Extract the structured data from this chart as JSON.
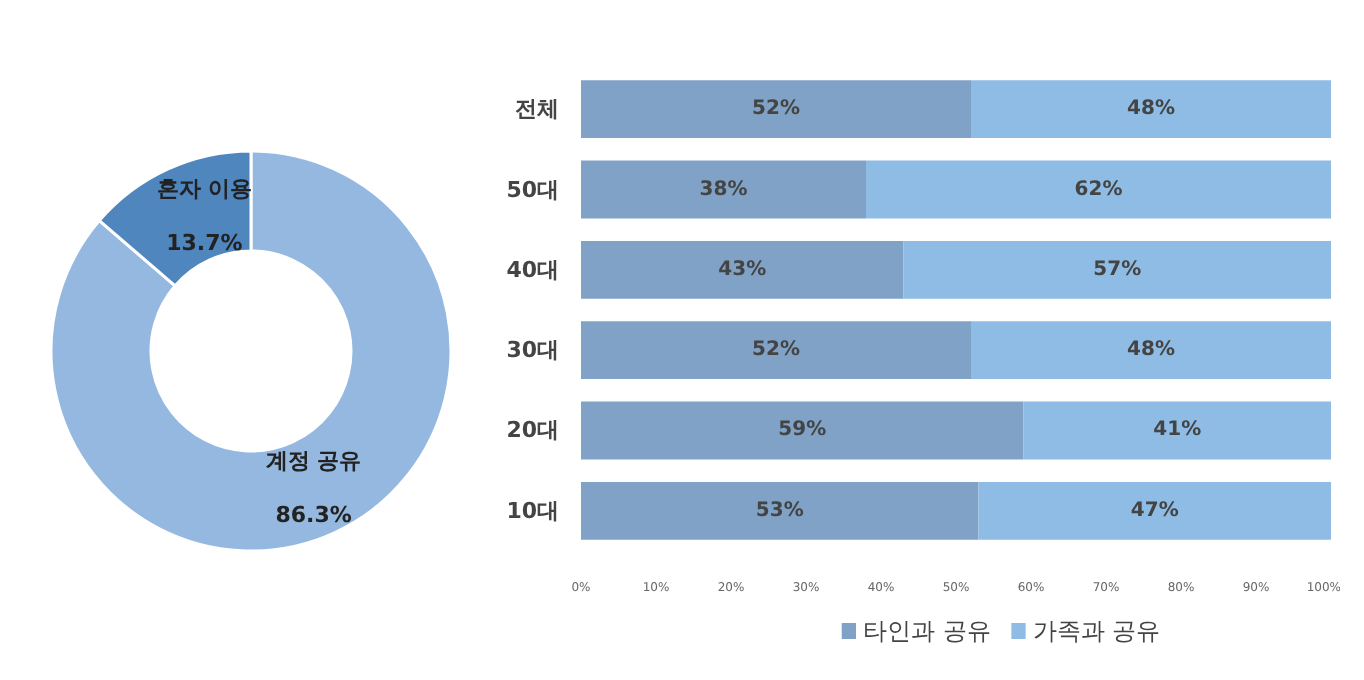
{
  "chart_data": [
    {
      "type": "donut",
      "categories": [
        "계정 공유",
        "혼자 이용"
      ],
      "values": [
        86.3,
        13.7
      ],
      "colors": [
        "#95b8e0",
        "#4f86bd"
      ],
      "value_labels": [
        "86.3%",
        "13.7%"
      ]
    },
    {
      "type": "bar",
      "orientation": "horizontal",
      "stacked": true,
      "categories": [
        "전체",
        "50대",
        "40대",
        "30대",
        "20대",
        "10대"
      ],
      "series": [
        {
          "name": "타인과 공유",
          "color": "#7fa2c6",
          "values": [
            52,
            38,
            43,
            52,
            59,
            53
          ],
          "value_labels": [
            "52%",
            "38%",
            "43%",
            "52%",
            "59%",
            "53%"
          ]
        },
        {
          "name": "가족과 공유",
          "color": "#8ebce4",
          "values": [
            48,
            62,
            57,
            48,
            41,
            47
          ],
          "value_labels": [
            "48%",
            "62%",
            "57%",
            "48%",
            "41%",
            "47%"
          ]
        }
      ],
      "xlim": [
        0,
        100
      ],
      "xticks": [
        {
          "value": 0,
          "label": "0%"
        },
        {
          "value": 10,
          "label": "10%"
        },
        {
          "value": 20,
          "label": "20%"
        },
        {
          "value": 30,
          "label": "30%"
        },
        {
          "value": 40,
          "label": "40%"
        },
        {
          "value": 50,
          "label": "50%"
        },
        {
          "value": 60,
          "label": "60%"
        },
        {
          "value": 70,
          "label": "70%"
        },
        {
          "value": 80,
          "label": "80%"
        },
        {
          "value": 90,
          "label": "90%"
        },
        {
          "value": 100,
          "label": "100%"
        }
      ],
      "legend": "bottom",
      "grid": false
    }
  ]
}
